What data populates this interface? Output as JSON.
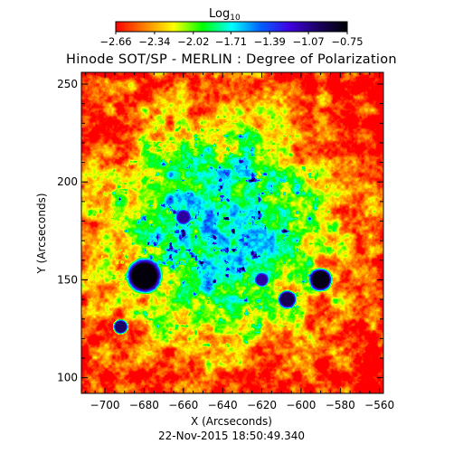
{
  "chart_data": {
    "type": "heatmap",
    "title": "Hinode SOT/SP - MERLIN : Degree of Polarization",
    "xlabel": "X (Arcseconds)",
    "ylabel": "Y (Arcseconds)",
    "timestamp": "22-Nov-2015 18:50:49.340",
    "xlim": [
      -712,
      -558
    ],
    "ylim": [
      92,
      256
    ],
    "x_ticks": [
      -700,
      -680,
      -660,
      -640,
      -620,
      -600,
      -580,
      -560
    ],
    "x_tick_labels": [
      "−700",
      "−680",
      "−660",
      "−640",
      "−620",
      "−600",
      "−580",
      "−560"
    ],
    "y_ticks": [
      100,
      150,
      200,
      250
    ],
    "y_tick_labels": [
      "100",
      "150",
      "200",
      "250"
    ],
    "colorbar": {
      "label_main": "Log",
      "label_sub": "10",
      "scale": "log10",
      "range": [
        -2.66,
        -0.75
      ],
      "ticks": [
        -2.66,
        -2.34,
        -2.02,
        -1.71,
        -1.39,
        -1.07,
        -0.75
      ],
      "tick_labels": [
        "−2.66",
        "−2.34",
        "−2.02",
        "−1.71",
        "−1.39",
        "−1.07",
        "−0.75"
      ],
      "colormap": [
        "#ff0000",
        "#ff8000",
        "#ffff00",
        "#00ff00",
        "#00ffff",
        "#0060ff",
        "#4000e0",
        "#1a0060",
        "#000000"
      ]
    },
    "features": [
      {
        "name": "spot",
        "x": -680,
        "y": 152,
        "radius": 6,
        "value": -0.78
      },
      {
        "name": "spot",
        "x": -590,
        "y": 150,
        "radius": 4,
        "value": -0.8
      },
      {
        "name": "spot",
        "x": -607,
        "y": 140,
        "radius": 3.2,
        "value": -0.95
      },
      {
        "name": "spot",
        "x": -692,
        "y": 126,
        "radius": 2.6,
        "value": -1.0
      },
      {
        "name": "spot",
        "x": -660,
        "y": 182,
        "radius": 2.5,
        "value": -1.1
      },
      {
        "name": "spot",
        "x": -620,
        "y": 150,
        "radius": 2.4,
        "value": -1.1
      }
    ]
  }
}
